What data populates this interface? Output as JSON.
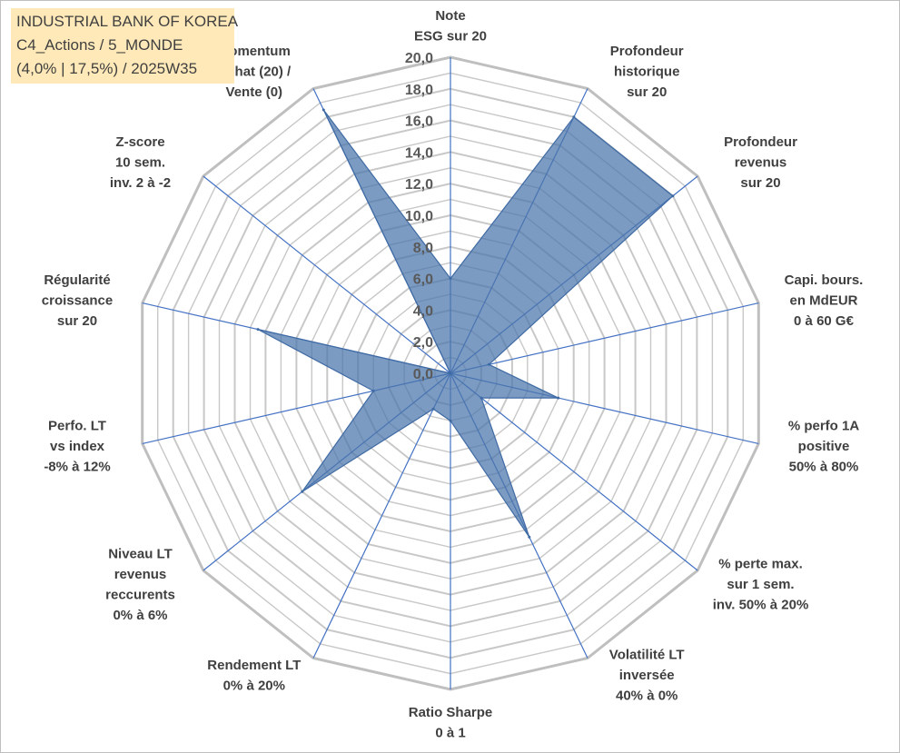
{
  "title_box": {
    "line1": "INDUSTRIAL BANK OF KOREA",
    "line2": "C4_Actions / 5_MONDE",
    "line3": "(4,0% | 17,5%) / 2025W35"
  },
  "chart_data": {
    "type": "radar",
    "rmin": 0,
    "rmax": 20,
    "ticks": [
      "0,0",
      "2,0",
      "4,0",
      "6,0",
      "8,0",
      "10,0",
      "12,0",
      "14,0",
      "16,0",
      "18,0",
      "20,0"
    ],
    "axes": [
      [
        "Note",
        "ESG sur 20"
      ],
      [
        "Profondeur",
        "historique",
        "sur 20"
      ],
      [
        "Profondeur",
        "revenus",
        "sur 20"
      ],
      [
        "Capi. bours.",
        "en MdEUR",
        "0 à 60 G€"
      ],
      [
        "% perfo 1A",
        "positive",
        "50% à 80%"
      ],
      [
        "% perte max.",
        "sur 1 sem.",
        "inv. 50% à 20%"
      ],
      [
        "Volatilité LT",
        "inversée",
        "40% à 0%"
      ],
      [
        "Ratio Sharpe",
        "0 à 1"
      ],
      [
        "Rendement LT",
        "0% à 20%"
      ],
      [
        "Niveau LT",
        "revenus",
        "reccurents",
        "0% à 6%"
      ],
      [
        "Perfo. LT",
        "vs index",
        "-8% à 12%"
      ],
      [
        "Régularité",
        "croissance",
        "sur 20"
      ],
      [
        "Z-score",
        "10 sem.",
        "inv. 2 à -2"
      ],
      [
        "Momentum",
        "Achat (20) /",
        "Vente (0)"
      ]
    ],
    "series": [
      {
        "values": [
          6.0,
          18.0,
          18.0,
          2.5,
          7.0,
          2.5,
          11.5,
          3.0,
          2.5,
          12.0,
          5.0,
          12.5,
          0.0,
          18.5
        ]
      }
    ],
    "colors": {
      "fill": "#4a74aa",
      "stroke": "#3f6aa4",
      "grid": "#c8c8c8",
      "spoke": "#4472c4"
    }
  }
}
